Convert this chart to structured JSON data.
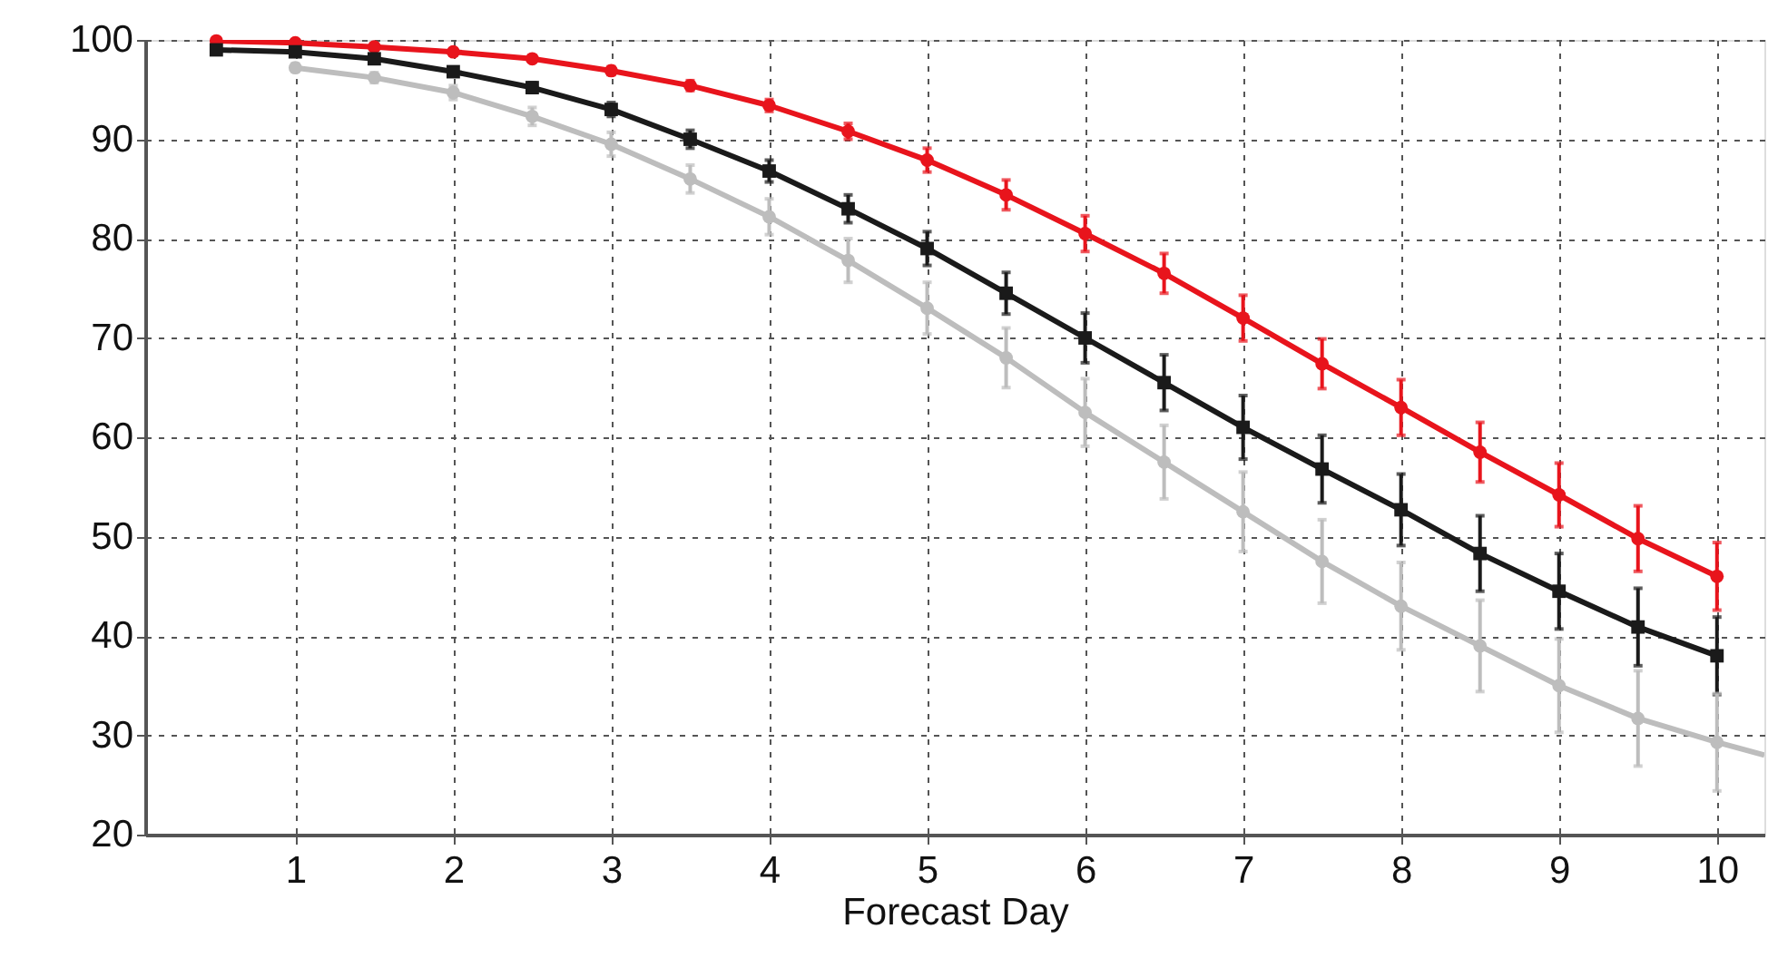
{
  "chart_data": {
    "type": "line",
    "xlabel": "Forecast Day",
    "xlim": [
      0.05,
      10.3
    ],
    "xticks": [
      1,
      2,
      3,
      4,
      5,
      6,
      7,
      8,
      9,
      10
    ],
    "ylim": [
      20,
      100
    ],
    "yticks": [
      20,
      30,
      40,
      50,
      60,
      70,
      80,
      90,
      100
    ],
    "grid": true,
    "legend": false,
    "line_style": "solid",
    "series": [
      {
        "color": "#e8141c",
        "marker": "circle",
        "x": [
          0.5,
          1,
          1.5,
          2,
          2.5,
          3,
          3.5,
          4,
          4.5,
          5,
          5.5,
          6,
          6.5,
          7,
          7.5,
          8,
          8.5,
          9,
          9.5,
          10
        ],
        "values": [
          99.9,
          99.7,
          99.3,
          98.8,
          98.1,
          96.9,
          95.4,
          93.4,
          90.8,
          87.9,
          84.4,
          80.5,
          76.5,
          72.0,
          67.4,
          63.0,
          58.5,
          54.2,
          49.8,
          46.0
        ],
        "errors": [
          0.1,
          0.2,
          0.3,
          0.3,
          0.3,
          0.4,
          0.5,
          0.6,
          0.8,
          1.2,
          1.5,
          1.8,
          2.0,
          2.3,
          2.5,
          2.8,
          3.0,
          3.2,
          3.3,
          3.4
        ]
      },
      {
        "color": "#1a1a1a",
        "marker": "square",
        "x": [
          0.5,
          1,
          1.5,
          2,
          2.5,
          3,
          3.5,
          4,
          4.5,
          5,
          5.5,
          6,
          6.5,
          7,
          7.5,
          8,
          8.5,
          9,
          9.5,
          10
        ],
        "values": [
          99.0,
          98.8,
          98.1,
          96.8,
          95.2,
          93.0,
          90.0,
          86.8,
          83.0,
          79.0,
          74.5,
          70.0,
          65.5,
          61.0,
          56.8,
          52.7,
          48.3,
          44.5,
          40.9,
          38.0
        ],
        "errors": [
          0.3,
          0.3,
          0.3,
          0.4,
          0.5,
          0.7,
          0.9,
          1.1,
          1.4,
          1.7,
          2.1,
          2.5,
          2.8,
          3.2,
          3.4,
          3.6,
          3.8,
          3.8,
          3.9,
          3.9
        ]
      },
      {
        "color": "#bdbdbd",
        "marker": "circle",
        "x": [
          1,
          1.5,
          2,
          2.5,
          3,
          3.5,
          4,
          4.5,
          5,
          5.5,
          6,
          6.5,
          7,
          7.5,
          8,
          8.5,
          9,
          9.5,
          10,
          10.3
        ],
        "values": [
          97.2,
          96.2,
          94.7,
          92.3,
          89.5,
          86.0,
          82.2,
          77.8,
          73.0,
          68.0,
          62.5,
          57.5,
          52.5,
          47.5,
          43.0,
          39.0,
          35.0,
          31.7,
          29.3,
          28.0
        ],
        "errors": [
          0.4,
          0.5,
          0.7,
          0.9,
          1.2,
          1.4,
          1.8,
          2.2,
          2.6,
          3.0,
          3.4,
          3.7,
          4.0,
          4.2,
          4.4,
          4.6,
          4.7,
          4.8,
          4.9,
          null
        ]
      }
    ]
  }
}
